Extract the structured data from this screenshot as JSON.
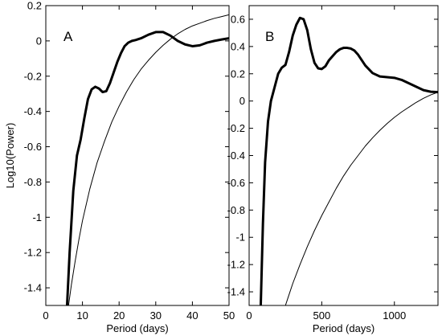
{
  "chart_data": [
    {
      "type": "line",
      "panel_label": "A",
      "xlabel": "Period (days)",
      "ylabel": "Log10(Power)",
      "xlim": [
        0,
        50
      ],
      "ylim": [
        -1.5,
        0.2
      ],
      "xticks": [
        0,
        10,
        20,
        30,
        40,
        50
      ],
      "xtick_labels": [
        "0",
        "10",
        "20",
        "30",
        "40",
        "50"
      ],
      "yticks": [
        -1.4,
        -1.2,
        -1,
        -0.8,
        -0.6,
        -0.4,
        -0.2,
        0,
        0.2
      ],
      "ytick_labels": [
        "-1.4",
        "-1.2",
        "-1",
        "-0.8",
        "-0.6",
        "-0.4",
        "-0.2",
        "0",
        "0.2"
      ],
      "grid": false,
      "series": [
        {
          "style": "thick",
          "x": [
            5.8,
            6.5,
            7.5,
            8.5,
            9.5,
            10.5,
            11.5,
            12.5,
            13.5,
            14.5,
            15.5,
            16.5,
            17.5,
            18.5,
            19.5,
            20.5,
            21.5,
            22.5,
            23.5,
            24.5,
            26,
            28,
            30,
            32,
            34,
            36,
            38,
            40,
            42,
            44,
            46,
            48,
            50
          ],
          "y": [
            -1.5,
            -1.2,
            -0.85,
            -0.65,
            -0.56,
            -0.44,
            -0.33,
            -0.275,
            -0.26,
            -0.27,
            -0.29,
            -0.285,
            -0.24,
            -0.18,
            -0.12,
            -0.07,
            -0.03,
            -0.01,
            0.0,
            0.005,
            0.015,
            0.035,
            0.05,
            0.05,
            0.03,
            0.0,
            -0.02,
            -0.03,
            -0.025,
            -0.01,
            0.0,
            0.008,
            0.015
          ]
        },
        {
          "style": "thin",
          "x": [
            6.2,
            7,
            8,
            9,
            10,
            12,
            14,
            16,
            18,
            20,
            22,
            24,
            26,
            28,
            30,
            32,
            34,
            36,
            38,
            40,
            42,
            44,
            46,
            48,
            50
          ],
          "y": [
            -1.5,
            -1.38,
            -1.25,
            -1.13,
            -1.02,
            -0.84,
            -0.69,
            -0.57,
            -0.46,
            -0.37,
            -0.29,
            -0.22,
            -0.16,
            -0.11,
            -0.065,
            -0.025,
            0.01,
            0.04,
            0.065,
            0.085,
            0.1,
            0.115,
            0.128,
            0.138,
            0.148
          ]
        }
      ]
    },
    {
      "type": "line",
      "panel_label": "B",
      "xlabel": "Period (days)",
      "ylabel": "",
      "xlim": [
        0,
        1300
      ],
      "ylim": [
        -1.5,
        0.7
      ],
      "xticks": [
        0,
        500,
        1000
      ],
      "xtick_labels": [
        "0",
        "500",
        "1000"
      ],
      "yticks": [
        -1.4,
        -1.2,
        -1,
        -0.8,
        -0.6,
        -0.4,
        -0.2,
        0,
        0.2,
        0.4,
        0.6
      ],
      "ytick_labels": [
        "-1.4",
        "-1.2",
        "-1",
        "-0.8",
        "-0.6",
        "-0.4",
        "-0.2",
        "0",
        "0.2",
        "0.4",
        "0.6"
      ],
      "grid": false,
      "series": [
        {
          "style": "thick",
          "x": [
            80,
            95,
            110,
            130,
            150,
            175,
            200,
            225,
            250,
            275,
            300,
            325,
            350,
            375,
            400,
            425,
            450,
            475,
            500,
            525,
            550,
            575,
            600,
            625,
            650,
            675,
            700,
            725,
            750,
            775,
            800,
            850,
            900,
            950,
            1000,
            1050,
            1100,
            1150,
            1200,
            1250,
            1300
          ],
          "y": [
            -1.5,
            -0.9,
            -0.45,
            -0.15,
            0.0,
            0.1,
            0.2,
            0.245,
            0.265,
            0.36,
            0.48,
            0.56,
            0.61,
            0.6,
            0.52,
            0.38,
            0.28,
            0.24,
            0.235,
            0.255,
            0.3,
            0.33,
            0.36,
            0.38,
            0.39,
            0.39,
            0.385,
            0.37,
            0.34,
            0.3,
            0.26,
            0.205,
            0.18,
            0.175,
            0.17,
            0.155,
            0.13,
            0.105,
            0.08,
            0.068,
            0.065
          ]
        },
        {
          "style": "thin",
          "x": [
            250,
            275,
            300,
            350,
            400,
            450,
            500,
            550,
            600,
            650,
            700,
            750,
            800,
            850,
            900,
            950,
            1000,
            1050,
            1100,
            1150,
            1200,
            1250,
            1300
          ],
          "y": [
            -1.5,
            -1.42,
            -1.34,
            -1.2,
            -1.07,
            -0.95,
            -0.84,
            -0.74,
            -0.64,
            -0.55,
            -0.47,
            -0.4,
            -0.33,
            -0.27,
            -0.215,
            -0.165,
            -0.12,
            -0.08,
            -0.045,
            -0.01,
            0.02,
            0.045,
            0.065
          ]
        }
      ]
    }
  ]
}
